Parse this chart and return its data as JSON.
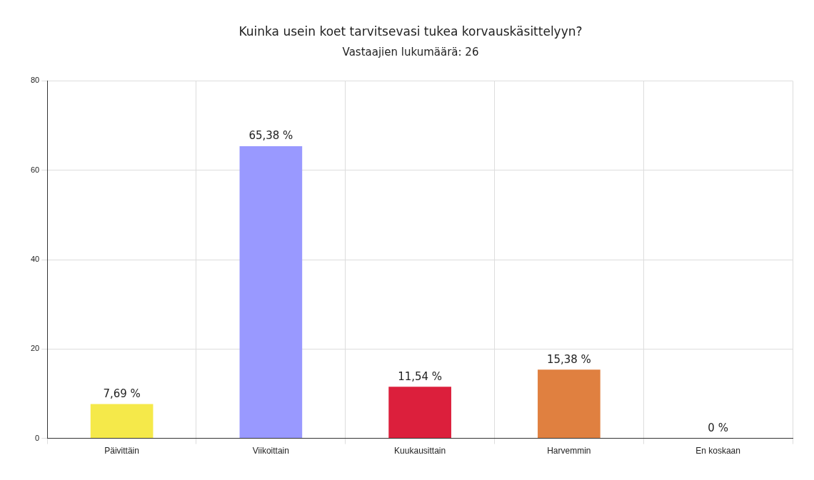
{
  "chart_data": {
    "type": "bar",
    "title": "Kuinka usein koet tarvitsevasi tukea korvauskäsittelyyn?",
    "subtitle": "Vastaajien lukumäärä: 26",
    "categories": [
      "Päivittäin",
      "Viikoittain",
      "Kuukausittain",
      "Harvemmin",
      "En koskaan"
    ],
    "values": [
      7.69,
      65.38,
      11.54,
      15.38,
      0
    ],
    "colors": [
      "#f5e94a",
      "#9999ff",
      "#dc1f3c",
      "#e08040",
      "#888888"
    ],
    "value_labels": [
      "7,69 %",
      "65,38 %",
      "11,54 %",
      "15,38 %",
      "0 %"
    ],
    "ylim": [
      0,
      80
    ],
    "yticks": [
      0,
      20,
      40,
      60,
      80
    ],
    "grid": true
  }
}
